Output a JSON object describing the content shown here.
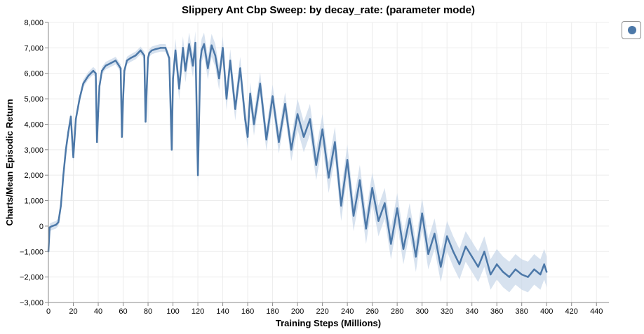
{
  "chart_data": {
    "type": "line",
    "title": "Slippery Ant Cbp Sweep: by decay_rate: (parameter mode)",
    "xlabel": "Training Steps (Millions)",
    "ylabel": "Charts/Mean Episodic Return",
    "xlim": [
      0,
      450
    ],
    "ylim": [
      -3000,
      8000
    ],
    "x_ticks": [
      0,
      20,
      40,
      60,
      80,
      100,
      120,
      140,
      160,
      180,
      200,
      220,
      240,
      260,
      280,
      300,
      320,
      340,
      360,
      380,
      400,
      420,
      440
    ],
    "y_ticks": [
      -3000,
      -2000,
      -1000,
      0,
      1000,
      2000,
      3000,
      4000,
      5000,
      6000,
      7000,
      8000
    ],
    "y_tick_labels": [
      "−3,000",
      "−2,000",
      "−1,000",
      "0",
      "1,000",
      "2,000",
      "3,000",
      "4,000",
      "5,000",
      "6,000",
      "7,000",
      "8,000"
    ],
    "grid": true,
    "legend_position": "top-right",
    "series": [
      {
        "color": "#4c78a8",
        "band_color": "#c6d5e8",
        "x": [
          0,
          1,
          3,
          6,
          8,
          10,
          12,
          14,
          16,
          18,
          19,
          20,
          22,
          25,
          28,
          32,
          36,
          38,
          39,
          40,
          41,
          43,
          46,
          50,
          54,
          58,
          59,
          60,
          61,
          63,
          66,
          70,
          74,
          77,
          78,
          79,
          80,
          81,
          83,
          86,
          90,
          94,
          97,
          99,
          100,
          102,
          105,
          108,
          110,
          113,
          116,
          118,
          120,
          121,
          122,
          123,
          125,
          128,
          131,
          134,
          137,
          140,
          143,
          146,
          150,
          154,
          158,
          160,
          162,
          165,
          170,
          175,
          180,
          185,
          190,
          195,
          200,
          205,
          210,
          215,
          220,
          225,
          230,
          235,
          240,
          245,
          250,
          255,
          260,
          265,
          270,
          275,
          280,
          285,
          290,
          295,
          300,
          305,
          310,
          315,
          320,
          325,
          330,
          335,
          340,
          345,
          350,
          355,
          360,
          365,
          370,
          375,
          380,
          385,
          390,
          395,
          398,
          400
        ],
        "y": [
          -1000,
          -50,
          0,
          50,
          150,
          800,
          2000,
          3000,
          3700,
          4300,
          3500,
          2700,
          4200,
          5000,
          5600,
          5900,
          6100,
          6000,
          3300,
          4500,
          5500,
          6100,
          6300,
          6400,
          6500,
          6200,
          3500,
          5000,
          6100,
          6500,
          6600,
          6700,
          6900,
          6700,
          4100,
          5500,
          6600,
          6800,
          6900,
          6950,
          7000,
          7000,
          6600,
          3000,
          5800,
          6900,
          5400,
          7000,
          6100,
          7150,
          6300,
          7200,
          2000,
          4200,
          6500,
          6900,
          7150,
          6200,
          7100,
          6700,
          5800,
          7000,
          5000,
          6500,
          4600,
          6200,
          4200,
          3500,
          5200,
          4000,
          5600,
          3400,
          5100,
          3300,
          4800,
          3000,
          4400,
          3500,
          4200,
          2400,
          3800,
          1900,
          3300,
          800,
          2600,
          400,
          1800,
          -100,
          1500,
          200,
          900,
          -700,
          700,
          -900,
          300,
          -1200,
          500,
          -1100,
          -300,
          -1600,
          -400,
          -1000,
          -1500,
          -800,
          -1200,
          -1600,
          -1000,
          -1900,
          -1500,
          -1800,
          -2000,
          -1700,
          -1900,
          -2000,
          -1700,
          -1900,
          -1500,
          -1800
        ]
      }
    ]
  }
}
